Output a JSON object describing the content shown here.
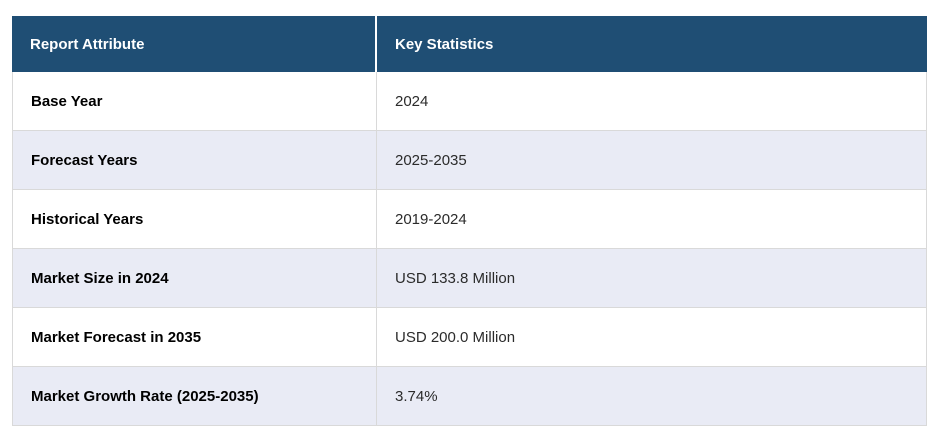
{
  "chart_data": {
    "type": "table",
    "columns": [
      "Report Attribute",
      "Key Statistics"
    ],
    "rows": [
      [
        "Base Year",
        "2024"
      ],
      [
        "Forecast Years",
        "2025-2035"
      ],
      [
        "Historical Years",
        "2019-2024"
      ],
      [
        "Market Size in 2024",
        "USD 133.8 Million"
      ],
      [
        "Market Forecast in 2035",
        "USD 200.0 Million"
      ],
      [
        "Market Growth Rate (2025-2035)",
        "3.74%"
      ]
    ],
    "layout_hints": {
      "zebra_striping": true,
      "striped_rows": "even rows (2,4,6) shaded",
      "header_position": "top"
    }
  },
  "colors": {
    "header_bg": "#1F4E74",
    "header_text": "#FFFFFF",
    "row_bg": "#FFFFFF",
    "row_alt_bg": "#E9EBF5",
    "border": "#D9D9D9",
    "attribute_text": "#000000",
    "value_text": "#2B2B2B"
  }
}
